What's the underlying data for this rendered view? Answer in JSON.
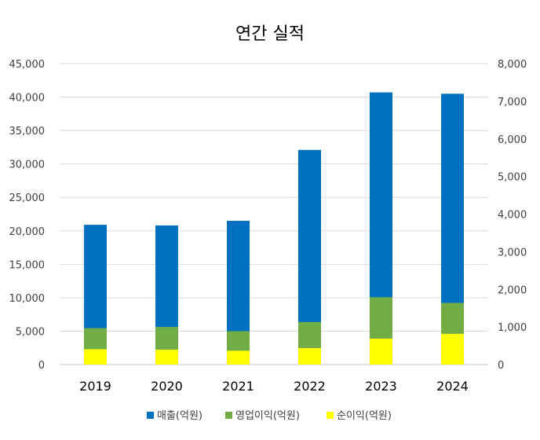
{
  "chart_data": {
    "type": "bar",
    "stacked": true,
    "title": "연간 실적",
    "categories": [
      "2019",
      "2020",
      "2021",
      "2022",
      "2023",
      "2024"
    ],
    "series": [
      {
        "name": "매출(억원)",
        "axis": "left",
        "color": "#0070C0",
        "values": [
          20900,
          20800,
          21500,
          32100,
          40700,
          40500
        ]
      },
      {
        "name": "영업이익(억원)",
        "axis": "right",
        "color": "#70AD47",
        "values": [
          560,
          600,
          520,
          690,
          1100,
          820
        ]
      },
      {
        "name": "순이익(억원)",
        "axis": "right",
        "color": "#FFFF00",
        "values": [
          410,
          400,
          370,
          440,
          690,
          820
        ]
      }
    ],
    "ylim_left": [
      0,
      45000
    ],
    "ylim_right": [
      0,
      8000
    ],
    "yticks_left": [
      "0",
      "5,000",
      "10,000",
      "15,000",
      "20,000",
      "25,000",
      "30,000",
      "35,000",
      "40,000",
      "45,000"
    ],
    "yticks_right": [
      "0",
      "1,000",
      "2,000",
      "3,000",
      "4,000",
      "5,000",
      "6,000",
      "7,000",
      "8,000"
    ],
    "grid": true,
    "legend": "bottom"
  }
}
